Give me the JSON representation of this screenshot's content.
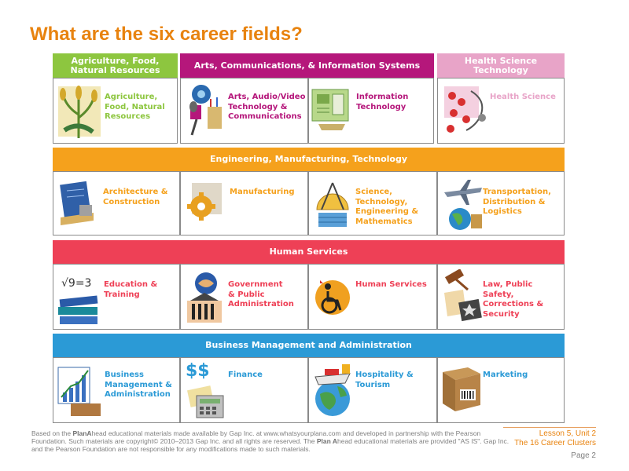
{
  "title": "What are the six career fields?",
  "colors": {
    "title": "#e8830f",
    "agriculture": "#8dc63f",
    "arts": "#b5177b",
    "health": "#e8a4c8",
    "engineering": "#f5a11c",
    "human_services": "#ee4056",
    "business": "#2b9ad6"
  },
  "headers": {
    "agriculture": "Agriculture, Food,\nNatural Resources",
    "arts": "Arts, Communications, & Information Systems",
    "health": "Health Science\nTechnology",
    "engineering": "Engineering, Manufacturing, Technology",
    "human_services": "Human Services",
    "business": "Business Management and Administration"
  },
  "clusters": {
    "agriculture": "Agriculture,\nFood, Natural\nResources",
    "arts_av": "Arts, Audio/Video\nTechnology &\nCommunications",
    "info_tech": "Information\nTechnology",
    "health_science": "Health Science",
    "architecture": "Architecture &\nConstruction",
    "manufacturing": "Manufacturing",
    "stem": "Science,\nTechnology,\nEngineering &\nMathematics",
    "transportation": "Transportation,\nDistribution &\nLogistics",
    "education": "Education &\nTraining",
    "government": "Government\n& Public\nAdministration",
    "human_services": "Human Services",
    "law": "Law, Public\nSafety,\nCorrections &\nSecurity",
    "business_mgmt": "Business\nManagement &\nAdministration",
    "finance": "Finance",
    "hospitality": "Hospitality &\nTourism",
    "marketing": "Marketing"
  },
  "icons": {
    "education_formula": "√9=3",
    "finance_symbol": "$$"
  },
  "footer": {
    "text_1": "Based on the ",
    "brand_1": "PlanA",
    "text_2": "head educational materials made available by Gap Inc. at www.whatsyourplana.com and developed in partnership with the Pearson Foundation.  Such materials are copyright© 2010–2013 Gap Inc. and all rights are reserved. The ",
    "brand_2": "Plan A",
    "text_3": "head educational materials are provided \"AS IS\". Gap Inc. and the Pearson Foundation are not responsible for any modifications made to such materials.",
    "lesson": "Lesson 5, Unit 2",
    "subtitle": "The 16 Career Clusters",
    "page": "Page 2"
  }
}
